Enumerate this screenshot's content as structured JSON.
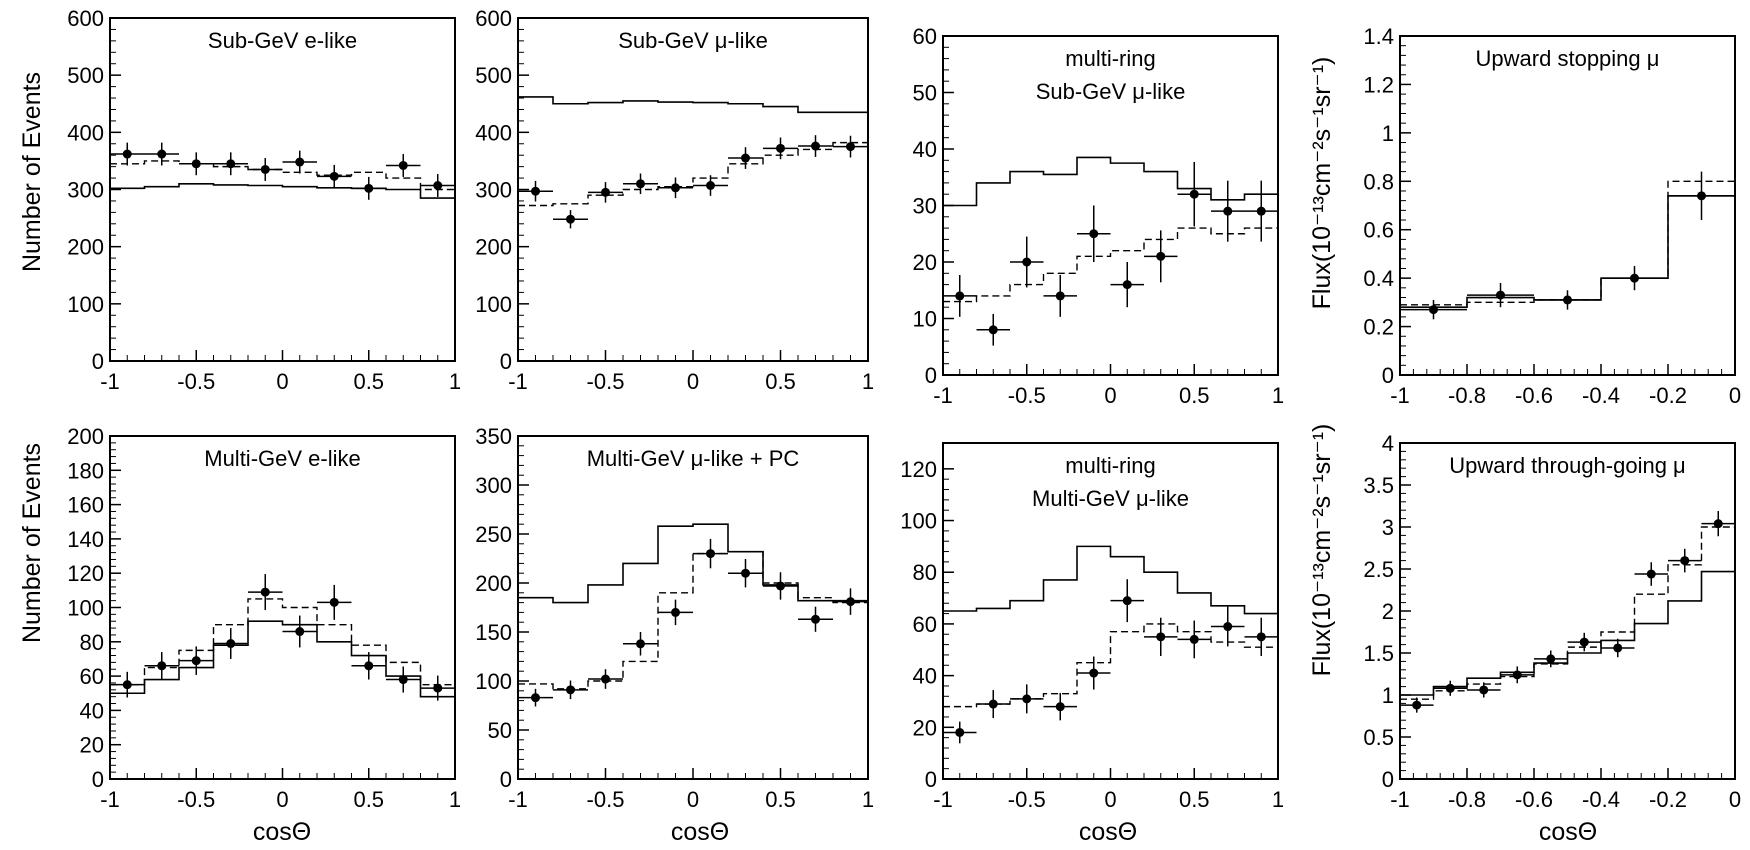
{
  "figure": {
    "ylabel_events": "Number of Events",
    "ylabel_flux": "Flux(10⁻¹³cm⁻²s⁻¹sr⁻¹)",
    "xlabel": "cosΘ"
  },
  "chart_data": [
    {
      "type": "histogram",
      "title": [
        "Sub-GeV e-like"
      ],
      "xlim": [
        -1,
        1
      ],
      "ylim": [
        0,
        600
      ],
      "xticks": [
        -1,
        -0.5,
        0,
        0.5,
        1
      ],
      "xtick_labels": [
        "-1",
        "-0.5",
        "0",
        "0.5",
        "1"
      ],
      "yticks": [
        0,
        100,
        200,
        300,
        400,
        500,
        600
      ],
      "ytick_labels": [
        "0",
        "100",
        "200",
        "300",
        "400",
        "500",
        "600"
      ],
      "bin_edges": [
        -1,
        -0.8,
        -0.6,
        -0.4,
        -0.2,
        0,
        0.2,
        0.4,
        0.6,
        0.8,
        1
      ],
      "solid": [
        302,
        305,
        310,
        308,
        307,
        305,
        303,
        302,
        300,
        285
      ],
      "dashed": [
        345,
        350,
        345,
        340,
        335,
        330,
        325,
        330,
        320,
        300
      ],
      "data": [
        {
          "x": -0.9,
          "y": 362,
          "err": 20
        },
        {
          "x": -0.7,
          "y": 362,
          "err": 20
        },
        {
          "x": -0.5,
          "y": 345,
          "err": 20
        },
        {
          "x": -0.3,
          "y": 345,
          "err": 20
        },
        {
          "x": -0.1,
          "y": 335,
          "err": 20
        },
        {
          "x": 0.1,
          "y": 348,
          "err": 20
        },
        {
          "x": 0.3,
          "y": 323,
          "err": 20
        },
        {
          "x": 0.5,
          "y": 302,
          "err": 20
        },
        {
          "x": 0.7,
          "y": 342,
          "err": 20
        },
        {
          "x": 0.9,
          "y": 307,
          "err": 20
        }
      ]
    },
    {
      "type": "histogram",
      "title": [
        "Sub-GeV μ-like"
      ],
      "xlim": [
        -1,
        1
      ],
      "ylim": [
        0,
        600
      ],
      "xticks": [
        -1,
        -0.5,
        0,
        0.5,
        1
      ],
      "xtick_labels": [
        "-1",
        "-0.5",
        "0",
        "0.5",
        "1"
      ],
      "yticks": [
        0,
        100,
        200,
        300,
        400,
        500,
        600
      ],
      "ytick_labels": [
        "0",
        "100",
        "200",
        "300",
        "400",
        "500",
        "600"
      ],
      "bin_edges": [
        -1,
        -0.8,
        -0.6,
        -0.4,
        -0.2,
        0,
        0.2,
        0.4,
        0.6,
        0.8,
        1
      ],
      "solid": [
        462,
        450,
        452,
        455,
        453,
        452,
        450,
        445,
        435,
        435
      ],
      "dashed": [
        272,
        275,
        290,
        300,
        305,
        320,
        345,
        360,
        370,
        382
      ],
      "data": [
        {
          "x": -0.9,
          "y": 297,
          "err": 18
        },
        {
          "x": -0.7,
          "y": 248,
          "err": 16
        },
        {
          "x": -0.5,
          "y": 295,
          "err": 18
        },
        {
          "x": -0.3,
          "y": 310,
          "err": 18
        },
        {
          "x": -0.1,
          "y": 303,
          "err": 18
        },
        {
          "x": 0.1,
          "y": 307,
          "err": 18
        },
        {
          "x": 0.3,
          "y": 355,
          "err": 19
        },
        {
          "x": 0.5,
          "y": 372,
          "err": 19
        },
        {
          "x": 0.7,
          "y": 376,
          "err": 19
        },
        {
          "x": 0.9,
          "y": 375,
          "err": 19
        }
      ]
    },
    {
      "type": "histogram",
      "title": [
        "multi-ring",
        "Sub-GeV μ-like"
      ],
      "xlim": [
        -1,
        1
      ],
      "ylim": [
        0,
        60
      ],
      "xticks": [
        -1,
        -0.5,
        0,
        0.5,
        1
      ],
      "xtick_labels": [
        "-1",
        "-0.5",
        "0",
        "0.5",
        "1"
      ],
      "yticks": [
        0,
        10,
        20,
        30,
        40,
        50,
        60
      ],
      "ytick_labels": [
        "0",
        "10",
        "20",
        "30",
        "40",
        "50",
        "60"
      ],
      "bin_edges": [
        -1,
        -0.8,
        -0.6,
        -0.4,
        -0.2,
        0,
        0.2,
        0.4,
        0.6,
        0.8,
        1
      ],
      "solid": [
        30,
        34,
        36,
        35.5,
        38.5,
        37.5,
        36,
        33,
        31,
        32
      ],
      "dashed": [
        13,
        14,
        16,
        18,
        21,
        22,
        24,
        26,
        25,
        26
      ],
      "data": [
        {
          "x": -0.9,
          "y": 14,
          "err": 3.7
        },
        {
          "x": -0.7,
          "y": 8,
          "err": 2.8
        },
        {
          "x": -0.5,
          "y": 20,
          "err": 4.5
        },
        {
          "x": -0.3,
          "y": 14,
          "err": 3.7
        },
        {
          "x": -0.1,
          "y": 25,
          "err": 5
        },
        {
          "x": 0.1,
          "y": 16,
          "err": 4
        },
        {
          "x": 0.3,
          "y": 21,
          "err": 4.6
        },
        {
          "x": 0.5,
          "y": 32,
          "err": 5.7
        },
        {
          "x": 0.7,
          "y": 29,
          "err": 5.4
        },
        {
          "x": 0.9,
          "y": 29,
          "err": 5.4
        }
      ]
    },
    {
      "type": "histogram",
      "title": [
        "Upward stopping μ"
      ],
      "xlim": [
        -1,
        0
      ],
      "ylim": [
        0,
        1.4
      ],
      "xticks": [
        -1,
        -0.8,
        -0.6,
        -0.4,
        -0.2,
        0
      ],
      "xtick_labels": [
        "-1",
        "-0.8",
        "-0.6",
        "-0.4",
        "-0.2",
        "0"
      ],
      "yticks": [
        0,
        0.2,
        0.4,
        0.6,
        0.8,
        1,
        1.2,
        1.4
      ],
      "ytick_labels": [
        "0",
        "0.2",
        "0.4",
        "0.6",
        "0.8",
        "1",
        "1.2",
        "1.4"
      ],
      "bin_edges": [
        -1,
        -0.8,
        -0.6,
        -0.4,
        -0.2,
        0
      ],
      "solid": [
        0.28,
        0.32,
        0.31,
        0.4,
        0.74
      ],
      "dashed": [
        0.29,
        0.3,
        0.31,
        0.4,
        0.8
      ],
      "data": [
        {
          "x": -0.9,
          "y": 0.27,
          "err": 0.04
        },
        {
          "x": -0.7,
          "y": 0.33,
          "err": 0.05
        },
        {
          "x": -0.5,
          "y": 0.31,
          "err": 0.04
        },
        {
          "x": -0.3,
          "y": 0.4,
          "err": 0.05
        },
        {
          "x": -0.1,
          "y": 0.74,
          "err": 0.1
        }
      ]
    },
    {
      "type": "histogram",
      "title": [
        "Multi-GeV e-like"
      ],
      "xlim": [
        -1,
        1
      ],
      "ylim": [
        0,
        200
      ],
      "xticks": [
        -1,
        -0.5,
        0,
        0.5,
        1
      ],
      "xtick_labels": [
        "-1",
        "-0.5",
        "0",
        "0.5",
        "1"
      ],
      "yticks": [
        0,
        20,
        40,
        60,
        80,
        100,
        120,
        140,
        160,
        180,
        200
      ],
      "ytick_labels": [
        "0",
        "20",
        "40",
        "60",
        "80",
        "100",
        "120",
        "140",
        "160",
        "180",
        "200"
      ],
      "bin_edges": [
        -1,
        -0.8,
        -0.6,
        -0.4,
        -0.2,
        0,
        0.2,
        0.4,
        0.6,
        0.8,
        1
      ],
      "solid": [
        50,
        58,
        65,
        78,
        92,
        90,
        80,
        72,
        60,
        48
      ],
      "dashed": [
        55,
        65,
        75,
        90,
        105,
        100,
        90,
        78,
        68,
        55
      ],
      "data": [
        {
          "x": -0.9,
          "y": 55,
          "err": 7.5
        },
        {
          "x": -0.7,
          "y": 66,
          "err": 8
        },
        {
          "x": -0.5,
          "y": 69,
          "err": 8.3
        },
        {
          "x": -0.3,
          "y": 79,
          "err": 9
        },
        {
          "x": -0.1,
          "y": 109,
          "err": 10.5
        },
        {
          "x": 0.1,
          "y": 86,
          "err": 9.3
        },
        {
          "x": 0.3,
          "y": 103,
          "err": 10.2
        },
        {
          "x": 0.5,
          "y": 66,
          "err": 8
        },
        {
          "x": 0.7,
          "y": 58,
          "err": 7.6
        },
        {
          "x": 0.9,
          "y": 53,
          "err": 7.3
        }
      ]
    },
    {
      "type": "histogram",
      "title": [
        "Multi-GeV μ-like + PC"
      ],
      "xlim": [
        -1,
        1
      ],
      "ylim": [
        0,
        350
      ],
      "xticks": [
        -1,
        -0.5,
        0,
        0.5,
        1
      ],
      "xtick_labels": [
        "-1",
        "-0.5",
        "0",
        "0.5",
        "1"
      ],
      "yticks": [
        0,
        50,
        100,
        150,
        200,
        250,
        300,
        350
      ],
      "ytick_labels": [
        "0",
        "50",
        "100",
        "150",
        "200",
        "250",
        "300",
        "350"
      ],
      "bin_edges": [
        -1,
        -0.8,
        -0.6,
        -0.4,
        -0.2,
        0,
        0.2,
        0.4,
        0.6,
        0.8,
        1
      ],
      "solid": [
        185,
        180,
        198,
        220,
        258,
        260,
        232,
        198,
        182,
        182
      ],
      "dashed": [
        97,
        92,
        100,
        120,
        190,
        230,
        232,
        200,
        185,
        180
      ],
      "data": [
        {
          "x": -0.9,
          "y": 83,
          "err": 9
        },
        {
          "x": -0.7,
          "y": 91,
          "err": 9.5
        },
        {
          "x": -0.5,
          "y": 102,
          "err": 10
        },
        {
          "x": -0.3,
          "y": 138,
          "err": 12
        },
        {
          "x": -0.1,
          "y": 170,
          "err": 13
        },
        {
          "x": 0.1,
          "y": 230,
          "err": 15
        },
        {
          "x": 0.3,
          "y": 210,
          "err": 14.5
        },
        {
          "x": 0.5,
          "y": 197,
          "err": 14
        },
        {
          "x": 0.7,
          "y": 163,
          "err": 12.8
        },
        {
          "x": 0.9,
          "y": 181,
          "err": 13.5
        }
      ]
    },
    {
      "type": "histogram",
      "title": [
        "multi-ring",
        "Multi-GeV μ-like"
      ],
      "xlim": [
        -1,
        1
      ],
      "ylim": [
        0,
        130
      ],
      "xticks": [
        -1,
        -0.5,
        0,
        0.5,
        1
      ],
      "xtick_labels": [
        "-1",
        "-0.5",
        "0",
        "0.5",
        "1"
      ],
      "yticks": [
        0,
        20,
        40,
        60,
        80,
        100,
        120
      ],
      "ytick_labels": [
        "0",
        "20",
        "40",
        "60",
        "80",
        "100",
        "120"
      ],
      "bin_edges": [
        -1,
        -0.8,
        -0.6,
        -0.4,
        -0.2,
        0,
        0.2,
        0.4,
        0.6,
        0.8,
        1
      ],
      "solid": [
        65,
        66,
        69,
        77,
        90,
        86,
        80,
        72,
        67,
        64
      ],
      "dashed": [
        28,
        29,
        31,
        33,
        45,
        57,
        60,
        57,
        53,
        51
      ],
      "data": [
        {
          "x": -0.9,
          "y": 18,
          "err": 4.2
        },
        {
          "x": -0.7,
          "y": 29,
          "err": 5.4
        },
        {
          "x": -0.5,
          "y": 31,
          "err": 5.6
        },
        {
          "x": -0.3,
          "y": 28,
          "err": 5.3
        },
        {
          "x": -0.1,
          "y": 41,
          "err": 6.4
        },
        {
          "x": 0.1,
          "y": 69,
          "err": 8.3
        },
        {
          "x": 0.3,
          "y": 55,
          "err": 7.4
        },
        {
          "x": 0.5,
          "y": 54,
          "err": 7.3
        },
        {
          "x": 0.7,
          "y": 59,
          "err": 7.7
        },
        {
          "x": 0.9,
          "y": 55,
          "err": 7.4
        }
      ]
    },
    {
      "type": "histogram",
      "title": [
        "Upward through-going μ"
      ],
      "xlim": [
        -1,
        0
      ],
      "ylim": [
        0,
        4
      ],
      "xticks": [
        -1,
        -0.8,
        -0.6,
        -0.4,
        -0.2,
        0
      ],
      "xtick_labels": [
        "-1",
        "-0.8",
        "-0.6",
        "-0.4",
        "-0.2",
        "0"
      ],
      "yticks": [
        0,
        0.5,
        1,
        1.5,
        2,
        2.5,
        3,
        3.5,
        4
      ],
      "ytick_labels": [
        "0",
        "0.5",
        "1",
        "1.5",
        "2",
        "2.5",
        "3",
        "3.5",
        "4"
      ],
      "bin_edges": [
        -1,
        -0.9,
        -0.8,
        -0.7,
        -0.6,
        -0.5,
        -0.4,
        -0.3,
        -0.2,
        -0.1,
        0
      ],
      "solid": [
        1.0,
        1.1,
        1.2,
        1.27,
        1.38,
        1.5,
        1.65,
        1.85,
        2.12,
        2.47
      ],
      "dashed": [
        0.95,
        1.05,
        1.13,
        1.22,
        1.37,
        1.57,
        1.75,
        2.2,
        2.55,
        3.0
      ],
      "data": [
        {
          "x": -0.95,
          "y": 0.88,
          "err": 0.09
        },
        {
          "x": -0.85,
          "y": 1.08,
          "err": 0.09
        },
        {
          "x": -0.75,
          "y": 1.06,
          "err": 0.09
        },
        {
          "x": -0.65,
          "y": 1.24,
          "err": 0.1
        },
        {
          "x": -0.55,
          "y": 1.43,
          "err": 0.1
        },
        {
          "x": -0.45,
          "y": 1.63,
          "err": 0.11
        },
        {
          "x": -0.35,
          "y": 1.56,
          "err": 0.11
        },
        {
          "x": -0.25,
          "y": 2.44,
          "err": 0.14
        },
        {
          "x": -0.15,
          "y": 2.6,
          "err": 0.14
        },
        {
          "x": -0.05,
          "y": 3.04,
          "err": 0.15
        }
      ]
    }
  ]
}
